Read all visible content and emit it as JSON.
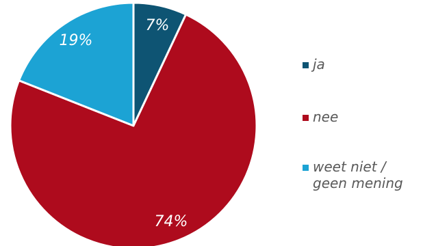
{
  "chart_data": {
    "type": "pie",
    "slices": [
      {
        "label": "ja",
        "value": 7,
        "color": "#0e5473",
        "data_label": "7%"
      },
      {
        "label": "nee",
        "value": 74,
        "color": "#ae0b1d",
        "data_label": "74%"
      },
      {
        "label": "weet niet / geen mening",
        "value": 19,
        "color": "#1ca3d4",
        "data_label": "19%"
      }
    ],
    "legend": {
      "placement": "right",
      "entries": [
        {
          "label": "ja",
          "color": "#0e5473"
        },
        {
          "label": "nee",
          "color": "#ae0b1d"
        },
        {
          "label": "weet niet /\ngeen mening",
          "color": "#1ca3d4"
        }
      ]
    }
  }
}
